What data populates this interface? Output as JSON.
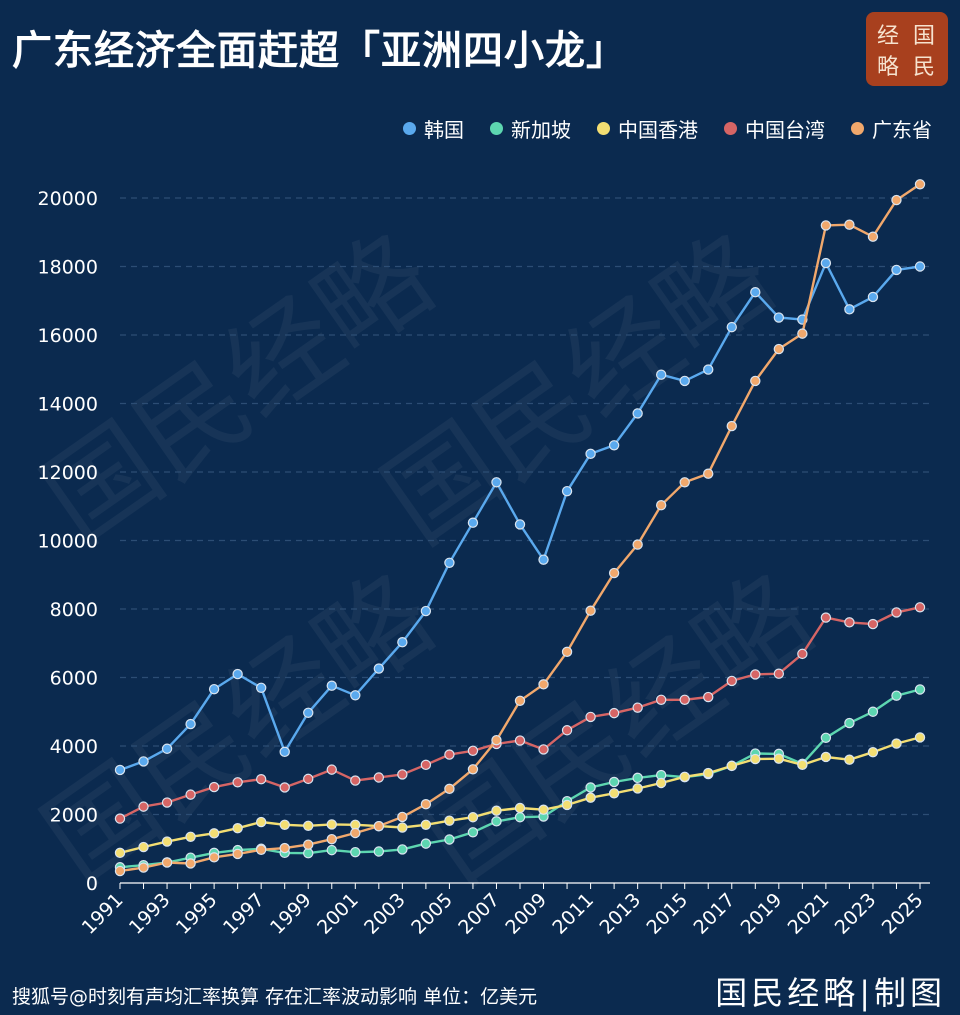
{
  "title": "广东经济全面赶超「亚洲四小龙」",
  "seal": {
    "chars": [
      "经",
      "国",
      "略",
      "民"
    ]
  },
  "footer": {
    "note": "搜狐号@时刻有声",
    "note_rest": "均汇率换算 存在汇率波动影响 单位：亿美元",
    "brand": "国民经略|制图"
  },
  "watermark": "国民经略",
  "colors": {
    "background": "#0b2a4f",
    "grid": "#2c4d74"
  },
  "chart_data": {
    "type": "line",
    "x": [
      1991,
      1992,
      1993,
      1994,
      1995,
      1996,
      1997,
      1998,
      1999,
      2000,
      2001,
      2002,
      2003,
      2004,
      2005,
      2006,
      2007,
      2008,
      2009,
      2010,
      2011,
      2012,
      2013,
      2014,
      2015,
      2016,
      2017,
      2018,
      2019,
      2020,
      2021,
      2022,
      2023,
      2024,
      2025
    ],
    "x_tick_labels": [
      "1991",
      "1993",
      "1995",
      "1997",
      "1999",
      "2001",
      "2003",
      "2005",
      "2007",
      "2009",
      "2011",
      "2013",
      "2015",
      "2017",
      "2019",
      "2021",
      "2023",
      "2025"
    ],
    "ylim": [
      0,
      20000
    ],
    "y_ticks": [
      0,
      2000,
      4000,
      6000,
      8000,
      10000,
      12000,
      14000,
      16000,
      18000,
      20000
    ],
    "grid": true,
    "legend_position": "top-right",
    "series": [
      {
        "name": "韩国",
        "color": "#5aa9ee",
        "values": [
          3300,
          3550,
          3920,
          4640,
          5660,
          6100,
          5700,
          3830,
          4970,
          5760,
          5480,
          6260,
          7030,
          7940,
          9350,
          10520,
          11700,
          10470,
          9440,
          11440,
          12530,
          12780,
          13710,
          14840,
          14660,
          14990,
          16230,
          17250,
          16510,
          16450,
          18100,
          16750,
          17110,
          17900,
          18000
        ]
      },
      {
        "name": "新加坡",
        "color": "#5dd6b0",
        "values": [
          460,
          520,
          600,
          740,
          880,
          960,
          1000,
          880,
          870,
          960,
          900,
          920,
          980,
          1150,
          1270,
          1480,
          1800,
          1920,
          1940,
          2390,
          2790,
          2950,
          3070,
          3150,
          3090,
          3180,
          3420,
          3780,
          3770,
          3480,
          4240,
          4670,
          5000,
          5470,
          5650
        ]
      },
      {
        "name": "中国香港",
        "color": "#f3de72",
        "values": [
          880,
          1050,
          1210,
          1350,
          1450,
          1600,
          1780,
          1700,
          1670,
          1710,
          1700,
          1660,
          1620,
          1700,
          1820,
          1920,
          2110,
          2190,
          2140,
          2280,
          2490,
          2620,
          2760,
          2920,
          3100,
          3210,
          3420,
          3620,
          3630,
          3450,
          3680,
          3600,
          3820,
          4070,
          4250
        ]
      },
      {
        "name": "中国台湾",
        "color": "#d66565",
        "values": [
          1880,
          2230,
          2350,
          2580,
          2800,
          2940,
          3030,
          2790,
          3040,
          3310,
          2990,
          3080,
          3170,
          3450,
          3750,
          3860,
          4060,
          4160,
          3900,
          4460,
          4850,
          4960,
          5120,
          5350,
          5350,
          5430,
          5900,
          6090,
          6110,
          6690,
          7750,
          7610,
          7560,
          7900,
          8050
        ]
      },
      {
        "name": "广东省",
        "color": "#f1a86c",
        "values": [
          350,
          450,
          600,
          570,
          750,
          850,
          970,
          1020,
          1120,
          1280,
          1460,
          1660,
          1930,
          2300,
          2750,
          3320,
          4170,
          5320,
          5800,
          6750,
          7950,
          9050,
          9880,
          11030,
          11700,
          11950,
          13340,
          14660,
          15590,
          16040,
          19200,
          19220,
          18870,
          19940,
          20400
        ]
      }
    ]
  }
}
